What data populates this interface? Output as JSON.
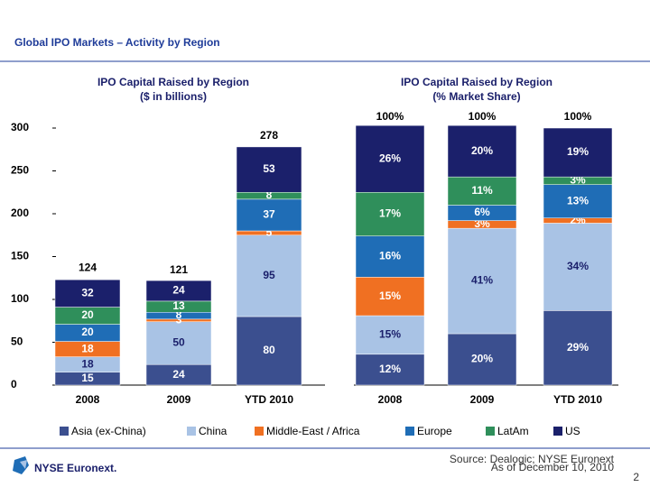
{
  "header": {
    "title": "Global IPO Markets – Activity by Region"
  },
  "chart_data": [
    {
      "type": "stacked-bar",
      "title": "IPO Capital Raised by Region",
      "subtitle": "($ in billions)",
      "categories": [
        "2008",
        "2009",
        "YTD 2010"
      ],
      "ylim": [
        0,
        300
      ],
      "yticks": [
        0,
        50,
        100,
        150,
        200,
        250,
        300
      ],
      "totals": [
        124,
        121,
        278
      ],
      "series": [
        {
          "name": "Asia (ex-China)",
          "color": "#3b4f8f",
          "values": [
            15,
            24,
            80
          ]
        },
        {
          "name": "China",
          "color": "#a9c3e5",
          "values": [
            18,
            50,
            95
          ]
        },
        {
          "name": "Middle-East / Africa",
          "color": "#f07022",
          "values": [
            18,
            3,
            5
          ]
        },
        {
          "name": "Europe",
          "color": "#1f6db6",
          "values": [
            20,
            8,
            37
          ]
        },
        {
          "name": "LatAm",
          "color": "#2f8f5b",
          "values": [
            20,
            13,
            8
          ]
        },
        {
          "name": "US",
          "color": "#1b206b",
          "values": [
            32,
            24,
            53
          ]
        }
      ]
    },
    {
      "type": "stacked-bar-100",
      "title": "IPO Capital Raised by Region",
      "subtitle": "(% Market Share)",
      "categories": [
        "2008",
        "2009",
        "YTD 2010"
      ],
      "totals": [
        100,
        100,
        100
      ],
      "total_labels": [
        "100%",
        "100%",
        "100%"
      ],
      "series": [
        {
          "color": "#3b4f8f",
          "values": [
            12,
            20,
            29
          ],
          "value_labels": [
            "12%",
            "20%",
            "29%"
          ]
        },
        {
          "color": "#a9c3e5",
          "values": [
            15,
            41,
            34
          ],
          "value_labels": [
            "15%",
            "41%",
            "34%"
          ]
        },
        {
          "color": "#f07022",
          "values": [
            15,
            3,
            2
          ],
          "value_labels": [
            "15%",
            "3%",
            "2%"
          ]
        },
        {
          "color": "#1f6db6",
          "values": [
            16,
            6,
            13
          ],
          "value_labels": [
            "16%",
            "6%",
            "13%"
          ]
        },
        {
          "color": "#2f8f5b",
          "values": [
            17,
            11,
            3
          ],
          "value_labels": [
            "17%",
            "11%",
            "3%"
          ]
        },
        {
          "color": "#1b206b",
          "values": [
            26,
            20,
            19
          ],
          "value_labels": [
            "26%",
            "20%",
            "19%"
          ]
        }
      ]
    }
  ],
  "footer": {
    "logo": "NYSE Euronext.",
    "source": "Source: Dealogic; NYSE Euronext",
    "date": "As of December 10, 2010",
    "page": "2"
  }
}
